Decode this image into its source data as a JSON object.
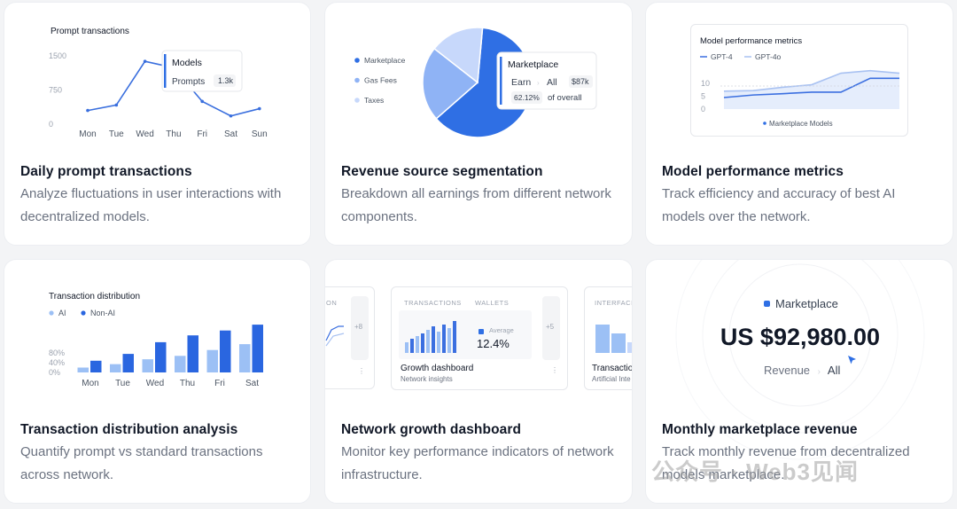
{
  "cards": [
    {
      "title": "Daily prompt transactions",
      "desc": "Analyze fluctuations in user interactions with decentralized models."
    },
    {
      "title": "Revenue source segmentation",
      "desc": "Breakdown all earnings from different network components."
    },
    {
      "title": "Model performance metrics",
      "desc": "Track efficiency and accuracy of best AI models over the network."
    },
    {
      "title": "Transaction distribution analysis",
      "desc": "Quantify prompt vs standard transactions across network."
    },
    {
      "title": "Network growth dashboard",
      "desc": "Monitor key performance indicators of network infrastructure."
    },
    {
      "title": "Monthly marketplace revenue",
      "desc": "Track monthly revenue from decentralized models marketplace."
    }
  ],
  "prompt_chart": {
    "title": "Prompt transactions",
    "tooltip": {
      "label": "Models",
      "metric": "Prompts",
      "value": "1.3k"
    }
  },
  "revenue_chart": {
    "tooltip": {
      "title": "Marketplace",
      "earn": "Earn",
      "all": "All",
      "amount": "$87k",
      "pct": "62.12%",
      "pct_label": "of overall"
    }
  },
  "perf_chart": {
    "title": "Model performance metrics",
    "footer": "Marketplace Models"
  },
  "dist_chart": {
    "title": "Transaction distribution"
  },
  "growth_dashboard": {
    "left_partial": {
      "header": "ON",
      "badge": "+8"
    },
    "center": {
      "tab1": "TRANSACTIONS",
      "tab2": "WALLETS",
      "avg_label": "Average",
      "avg_value": "12.4%",
      "badge": "+5",
      "title": "Growth dashboard",
      "subtitle": "Network insights"
    },
    "right_partial": {
      "header": "INTERFACIN",
      "title": "Transactio",
      "subtitle": "Artificial Inte"
    }
  },
  "marketplace_revenue": {
    "label": "Marketplace",
    "amount": "US $92,980.00",
    "crumb1": "Revenue",
    "crumb2": "All"
  },
  "watermark": "公众号 · Web3见闻",
  "chart_data": [
    {
      "type": "line",
      "title": "Prompt transactions",
      "categories": [
        "Mon",
        "Tue",
        "Wed",
        "Thu",
        "Fri",
        "Sat",
        "Sun"
      ],
      "values": [
        300,
        420,
        1380,
        1240,
        500,
        180,
        340
      ],
      "yticks": [
        0,
        750,
        1500
      ],
      "ylim": [
        0,
        1500
      ]
    },
    {
      "type": "pie",
      "labels": [
        "Marketplace",
        "Gas Fees",
        "Taxes"
      ],
      "values": [
        62.12,
        22,
        15.88
      ],
      "colors": [
        "#2f6fe4",
        "#8fb3f5",
        "#c7d8fb"
      ]
    },
    {
      "type": "line",
      "title": "Model performance metrics",
      "x": [
        0,
        1,
        2,
        3,
        4,
        5,
        6
      ],
      "series": [
        {
          "name": "GPT-4",
          "values": [
            4.5,
            5.5,
            6,
            6.6,
            6.6,
            12,
            12
          ],
          "color": "#3b6fe0"
        },
        {
          "name": "GPT-4o",
          "values": [
            7,
            7.2,
            8.5,
            9.5,
            14,
            15,
            14
          ],
          "color": "#a9c2f2"
        }
      ],
      "yticks": [
        0,
        5,
        10
      ],
      "ylim": [
        0,
        18
      ]
    },
    {
      "type": "bar",
      "title": "Transaction distribution",
      "categories": [
        "Mon",
        "Tue",
        "Wed",
        "Thu",
        "Fri",
        "Sat"
      ],
      "series": [
        {
          "name": "AI",
          "values": [
            10,
            17,
            27,
            34,
            46,
            58
          ],
          "color": "#9cc0f5"
        },
        {
          "name": "Non-AI",
          "values": [
            24,
            38,
            62,
            76,
            86,
            98
          ],
          "color": "#2a66e0"
        }
      ],
      "yticks": [
        "0%",
        "40%",
        "80%"
      ],
      "ylim": [
        0,
        100
      ]
    }
  ]
}
